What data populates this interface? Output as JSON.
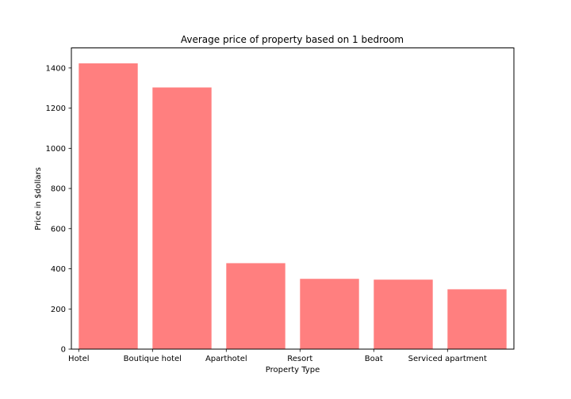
{
  "chart_data": {
    "type": "bar",
    "title": "Average price of property based on 1 bedroom",
    "xlabel": "Property Type",
    "ylabel": "Price in $dollars",
    "categories": [
      "Hotel",
      "Boutique hotel",
      "Aparthotel",
      "Resort",
      "Boat",
      "Serviced apartment"
    ],
    "values": [
      1423,
      1303,
      428,
      350,
      346,
      298
    ],
    "ylim": [
      0,
      1500
    ],
    "yticks": [
      0,
      200,
      400,
      600,
      800,
      1000,
      1200,
      1400
    ],
    "bar_color": "#ff7f7f",
    "grid": false
  }
}
